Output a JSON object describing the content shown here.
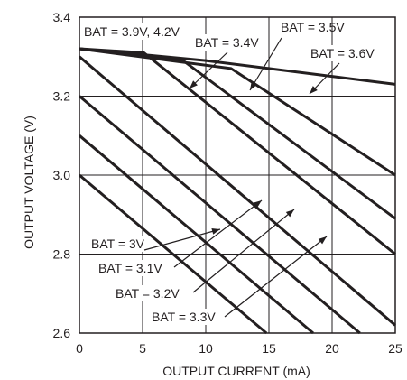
{
  "chart_data": {
    "type": "line",
    "title": "",
    "xlabel": "OUTPUT CURRENT (mA)",
    "ylabel": "OUTPUT VOLTAGE (V)",
    "xlim": [
      0,
      25
    ],
    "ylim": [
      2.6,
      3.4
    ],
    "x_ticks": [
      "0",
      "5",
      "10",
      "15",
      "20",
      "25"
    ],
    "y_ticks": [
      "2.6",
      "2.8",
      "3.0",
      "3.2",
      "3.4"
    ],
    "grid": true,
    "series": [
      {
        "name": "BAT = 3V",
        "x": [
          0,
          14.8
        ],
        "y": [
          3.0,
          2.6
        ]
      },
      {
        "name": "BAT = 3.1V",
        "x": [
          0,
          18.5
        ],
        "y": [
          3.1,
          2.6
        ]
      },
      {
        "name": "BAT = 3.2V",
        "x": [
          0,
          22.2
        ],
        "y": [
          3.2,
          2.6
        ]
      },
      {
        "name": "BAT = 3.3V",
        "x": [
          0,
          25
        ],
        "y": [
          3.3,
          2.62
        ]
      },
      {
        "name": "BAT = 3.4V",
        "x": [
          0,
          5.1,
          25
        ],
        "y": [
          3.32,
          3.31,
          2.8
        ]
      },
      {
        "name": "BAT = 3.5V",
        "x": [
          0,
          8.2,
          25
        ],
        "y": [
          3.32,
          3.29,
          2.89
        ]
      },
      {
        "name": "BAT = 3.6V",
        "x": [
          0,
          12,
          25
        ],
        "y": [
          3.32,
          3.27,
          3.0
        ]
      },
      {
        "name": "BAT = 3.9V, 4.2V",
        "x": [
          0,
          10,
          20,
          25
        ],
        "y": [
          3.32,
          3.29,
          3.25,
          3.23
        ]
      }
    ],
    "annotations": [
      {
        "text": "BAT = 3.9V, 4.2V"
      },
      {
        "text": "BAT = 3.4V"
      },
      {
        "text": "BAT = 3.5V"
      },
      {
        "text": "BAT = 3.6V"
      },
      {
        "text": "BAT = 3V"
      },
      {
        "text": "BAT = 3.1V"
      },
      {
        "text": "BAT = 3.2V"
      },
      {
        "text": "BAT = 3.3V"
      }
    ],
    "colors": {
      "line": "#231f20",
      "grid": "#231f20",
      "background": "#ffffff"
    }
  }
}
